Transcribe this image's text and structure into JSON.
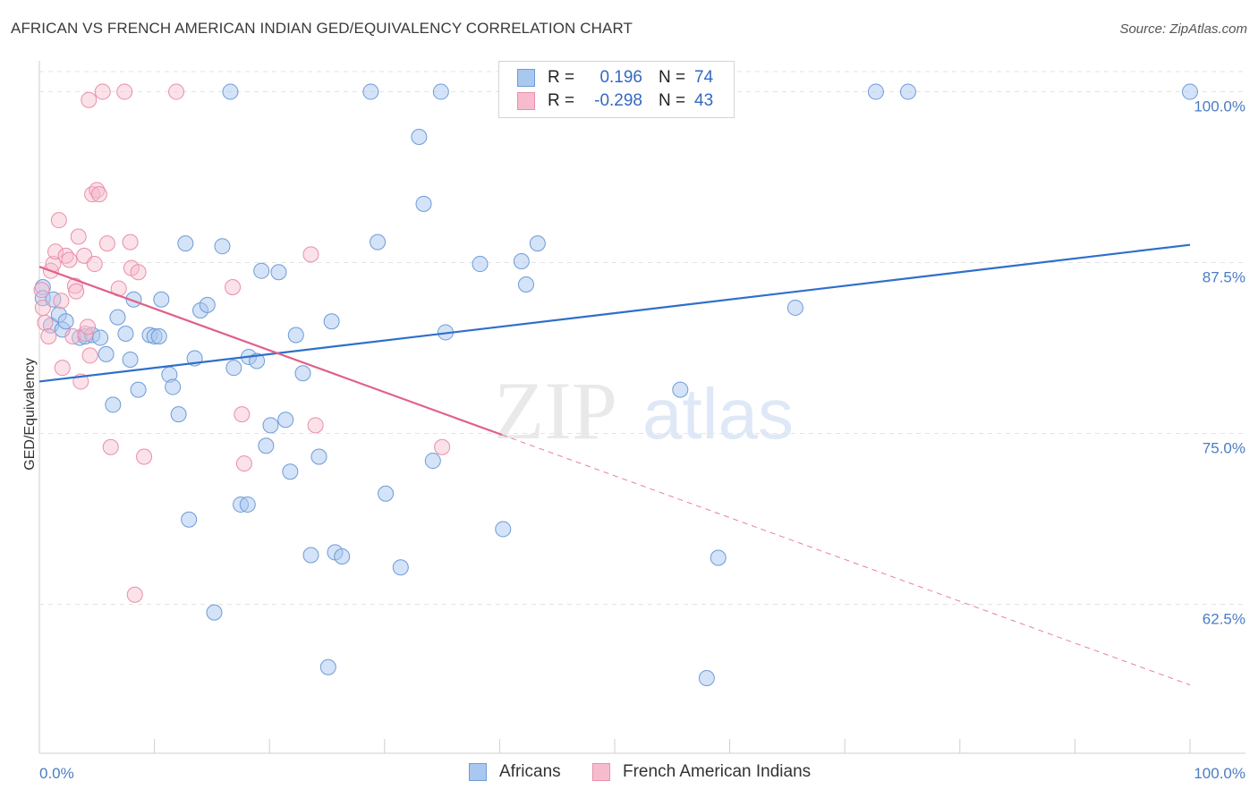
{
  "title": "AFRICAN VS FRENCH AMERICAN INDIAN GED/EQUIVALENCY CORRELATION CHART",
  "source": "Source: ZipAtlas.com",
  "watermark": {
    "zip": "ZIP",
    "atlas": "atlas"
  },
  "colors": {
    "blue_fill": "#a9c8f0",
    "blue_stroke": "#6d9bd8",
    "blue_line": "#2f6fcb",
    "pink_fill": "#f6bccd",
    "pink_stroke": "#e98fab",
    "pink_line": "#e0608a",
    "axis_text": "#4a7cc4",
    "grid": "#e3e3e3"
  },
  "legend": {
    "rows": [
      {
        "r_label": "R =",
        "r_value": "0.196",
        "n_label": "N =",
        "n_value": "74"
      },
      {
        "r_label": "R =",
        "r_value": "-0.298",
        "n_label": "N =",
        "n_value": "43"
      }
    ]
  },
  "bottom_legend": [
    "Africans",
    "French American Indians"
  ],
  "chart_data": {
    "type": "scatter",
    "title": "AFRICAN VS FRENCH AMERICAN INDIAN GED/EQUIVALENCY CORRELATION CHART",
    "xlabel": "",
    "ylabel": "GED/Equivalency",
    "x_tick_labels": [
      "0.0%",
      "100.0%"
    ],
    "y_tick_labels": [
      "100.0%",
      "87.5%",
      "75.0%",
      "62.5%"
    ],
    "y_ticks": [
      100.0,
      87.5,
      75.0,
      62.5
    ],
    "xlim": [
      0,
      100
    ],
    "ylim": [
      51.6,
      102.0
    ],
    "grid": true,
    "legend_placement": "top-center",
    "series": [
      {
        "name": "Africans",
        "r": 0.196,
        "n": 74,
        "trend": {
          "x0": 0,
          "y0": 78.8,
          "x1": 100,
          "y1": 88.8,
          "style": "solid"
        },
        "points": [
          [
            0.3,
            85.7
          ],
          [
            0.3,
            84.9
          ],
          [
            1.0,
            82.9
          ],
          [
            1.2,
            84.8
          ],
          [
            1.7,
            83.7
          ],
          [
            2.0,
            82.6
          ],
          [
            2.3,
            83.2
          ],
          [
            3.5,
            82.0
          ],
          [
            4.0,
            82.1
          ],
          [
            4.6,
            82.2
          ],
          [
            5.3,
            82.0
          ],
          [
            5.8,
            80.8
          ],
          [
            6.4,
            77.1
          ],
          [
            6.8,
            83.5
          ],
          [
            7.5,
            82.3
          ],
          [
            7.9,
            80.4
          ],
          [
            8.2,
            84.8
          ],
          [
            8.6,
            78.2
          ],
          [
            9.6,
            82.2
          ],
          [
            10.0,
            82.1
          ],
          [
            10.4,
            82.1
          ],
          [
            10.6,
            84.8
          ],
          [
            11.3,
            79.3
          ],
          [
            11.6,
            78.4
          ],
          [
            12.1,
            76.4
          ],
          [
            12.7,
            88.9
          ],
          [
            13.0,
            68.7
          ],
          [
            13.5,
            80.5
          ],
          [
            14.0,
            84.0
          ],
          [
            14.6,
            84.4
          ],
          [
            15.2,
            61.9
          ],
          [
            15.9,
            88.7
          ],
          [
            16.6,
            100.0
          ],
          [
            16.9,
            79.8
          ],
          [
            17.5,
            69.8
          ],
          [
            18.1,
            69.8
          ],
          [
            18.2,
            80.6
          ],
          [
            18.9,
            80.3
          ],
          [
            19.3,
            86.9
          ],
          [
            19.7,
            74.1
          ],
          [
            20.1,
            75.6
          ],
          [
            20.8,
            86.8
          ],
          [
            21.4,
            76.0
          ],
          [
            21.8,
            72.2
          ],
          [
            22.3,
            82.2
          ],
          [
            22.9,
            79.4
          ],
          [
            23.6,
            66.1
          ],
          [
            24.3,
            73.3
          ],
          [
            25.1,
            57.9
          ],
          [
            25.4,
            83.2
          ],
          [
            25.7,
            66.3
          ],
          [
            26.3,
            66.0
          ],
          [
            28.8,
            100.0
          ],
          [
            29.4,
            89.0
          ],
          [
            30.1,
            70.6
          ],
          [
            31.4,
            65.2
          ],
          [
            33.0,
            96.7
          ],
          [
            33.4,
            91.8
          ],
          [
            34.2,
            73.0
          ],
          [
            34.9,
            100.0
          ],
          [
            35.3,
            82.4
          ],
          [
            38.3,
            87.4
          ],
          [
            40.3,
            68.0
          ],
          [
            41.9,
            87.6
          ],
          [
            42.3,
            85.9
          ],
          [
            43.3,
            88.9
          ],
          [
            54.0,
            100.0
          ],
          [
            55.7,
            78.2
          ],
          [
            58.0,
            57.1
          ],
          [
            59.0,
            65.9
          ],
          [
            65.7,
            84.2
          ],
          [
            72.7,
            100.0
          ],
          [
            75.5,
            100.0
          ],
          [
            100.0,
            100.0
          ]
        ]
      },
      {
        "name": "French American Indians",
        "r": -0.298,
        "n": 43,
        "trend": {
          "x0": 0,
          "y0": 87.2,
          "x1": 40.2,
          "y1": 74.9,
          "style": "solid",
          "dash_x1": 100,
          "dash_y1": 56.6
        },
        "points": [
          [
            0.2,
            85.5
          ],
          [
            0.3,
            84.2
          ],
          [
            0.5,
            83.1
          ],
          [
            0.8,
            82.1
          ],
          [
            1.0,
            86.9
          ],
          [
            1.2,
            87.4
          ],
          [
            1.4,
            88.3
          ],
          [
            1.7,
            90.6
          ],
          [
            1.9,
            84.7
          ],
          [
            2.0,
            79.8
          ],
          [
            2.3,
            88.0
          ],
          [
            2.6,
            87.7
          ],
          [
            2.9,
            82.1
          ],
          [
            3.1,
            85.8
          ],
          [
            3.2,
            85.4
          ],
          [
            3.4,
            89.4
          ],
          [
            3.6,
            78.8
          ],
          [
            3.9,
            88.0
          ],
          [
            4.0,
            82.3
          ],
          [
            4.2,
            82.8
          ],
          [
            4.3,
            99.4
          ],
          [
            4.4,
            80.7
          ],
          [
            4.6,
            92.5
          ],
          [
            4.8,
            87.4
          ],
          [
            5.0,
            92.8
          ],
          [
            5.2,
            92.5
          ],
          [
            5.5,
            100.0
          ],
          [
            5.9,
            88.9
          ],
          [
            6.2,
            74.0
          ],
          [
            6.9,
            85.6
          ],
          [
            7.4,
            100.0
          ],
          [
            7.9,
            89.0
          ],
          [
            8.0,
            87.1
          ],
          [
            8.3,
            63.2
          ],
          [
            8.6,
            86.8
          ],
          [
            9.1,
            73.3
          ],
          [
            11.9,
            100.0
          ],
          [
            16.8,
            85.7
          ],
          [
            17.6,
            76.4
          ],
          [
            17.8,
            72.8
          ],
          [
            23.6,
            88.1
          ],
          [
            24.0,
            75.6
          ],
          [
            35.0,
            74.0
          ]
        ]
      }
    ]
  }
}
